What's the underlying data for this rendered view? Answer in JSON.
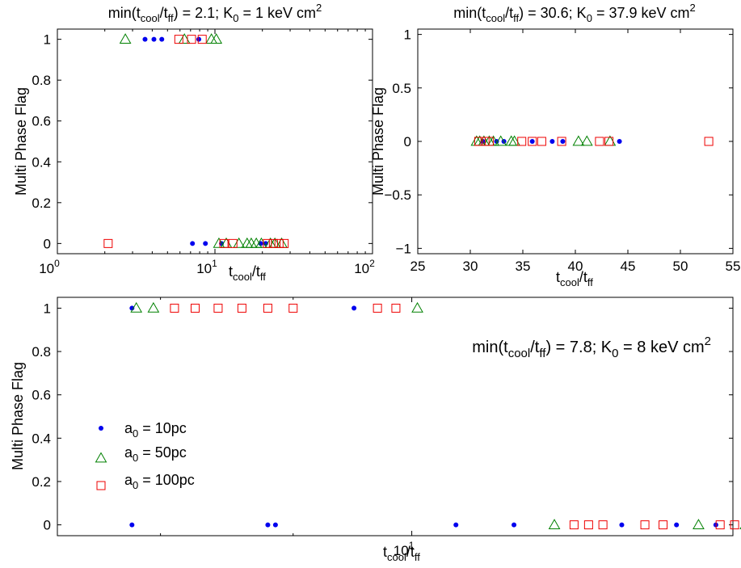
{
  "colors": {
    "a0_10pc": "#0000ee",
    "a0_50pc": "#008000",
    "a0_100pc": "#ee0000",
    "axes": "#000000",
    "background": "#ffffff"
  },
  "marker_shapes": {
    "a0_10pc": "dot",
    "a0_50pc": "triangle",
    "a0_100pc": "square"
  },
  "chart_data": [
    {
      "id": "top-left",
      "type": "scatter",
      "title": {
        "pre": "min(t",
        "s1": "cool",
        "mid": "/t",
        "s2": "ff",
        "post": ") = 2.1; K",
        "s3": "0",
        "post2": " = 1 keV cm",
        "sup": "2"
      },
      "xlabel": {
        "a": "t",
        "s1": "cool",
        "b": "/t",
        "s2": "ff"
      },
      "ylabel": "Multi Phase Flag",
      "xscale": "log",
      "xlim": [
        1,
        100
      ],
      "ylim": [
        -0.05,
        1.05
      ],
      "xticks": [
        {
          "base": "10",
          "exp": "0"
        },
        {
          "base": "10",
          "exp": "1"
        },
        {
          "base": "10",
          "exp": "2"
        }
      ],
      "yticks": [
        "0",
        "0.2",
        "0.4",
        "0.6",
        "0.8",
        "1"
      ],
      "yticks_values": [
        0,
        0.2,
        0.4,
        0.6,
        0.8,
        1
      ],
      "grid": false,
      "series": [
        {
          "key": "a0_10pc",
          "points": [
            [
              3.6,
              1
            ],
            [
              4.1,
              1
            ],
            [
              4.6,
              1
            ],
            [
              7.9,
              1
            ],
            [
              7.2,
              0
            ],
            [
              8.7,
              0
            ],
            [
              11.0,
              0
            ],
            [
              19.5,
              0
            ],
            [
              21.0,
              0
            ]
          ]
        },
        {
          "key": "a0_50pc",
          "points": [
            [
              2.7,
              1
            ],
            [
              6.4,
              1
            ],
            [
              9.5,
              1
            ],
            [
              10.2,
              1
            ],
            [
              10.6,
              0
            ],
            [
              11.8,
              0
            ],
            [
              14.2,
              0
            ],
            [
              16.0,
              0
            ],
            [
              17.0,
              0
            ],
            [
              18.3,
              0
            ],
            [
              19.7,
              0
            ],
            [
              22.5,
              0
            ],
            [
              24.0,
              0
            ],
            [
              26.5,
              0
            ]
          ]
        },
        {
          "key": "a0_100pc",
          "points": [
            [
              2.1,
              0
            ],
            [
              5.9,
              1
            ],
            [
              7.1,
              1
            ],
            [
              8.3,
              1
            ],
            [
              11.4,
              0
            ],
            [
              13.0,
              0
            ],
            [
              21.5,
              0
            ],
            [
              23.5,
              0
            ],
            [
              25.5,
              0
            ],
            [
              27.5,
              0
            ]
          ]
        }
      ]
    },
    {
      "id": "top-right",
      "type": "scatter",
      "title": {
        "pre": "min(t",
        "s1": "cool",
        "mid": "/t",
        "s2": "ff",
        "post": ") = 30.6; K",
        "s3": "0",
        "post2": " = 37.9 keV cm",
        "sup": "2"
      },
      "xlabel": {
        "a": "t",
        "s1": "cool",
        "b": "/t",
        "s2": "ff"
      },
      "ylabel": "Multi Phase Flag",
      "xscale": "linear",
      "xlim": [
        25,
        55
      ],
      "ylim": [
        -1.05,
        1.05
      ],
      "xticks": [
        "25",
        "30",
        "35",
        "40",
        "45",
        "50",
        "55"
      ],
      "xticks_values": [
        25,
        30,
        35,
        40,
        45,
        50,
        55
      ],
      "yticks": [
        "−1",
        "−0.5",
        "0",
        "0.5",
        "1"
      ],
      "yticks_values": [
        -1,
        -0.5,
        0,
        0.5,
        1
      ],
      "grid": false,
      "series": [
        {
          "key": "a0_10pc",
          "points": [
            [
              31.2,
              0
            ],
            [
              32.5,
              0
            ],
            [
              33.2,
              0
            ],
            [
              35.9,
              0
            ],
            [
              37.8,
              0
            ],
            [
              38.8,
              0
            ],
            [
              44.2,
              0
            ]
          ]
        },
        {
          "key": "a0_50pc",
          "points": [
            [
              30.6,
              0
            ],
            [
              30.9,
              0
            ],
            [
              31.3,
              0
            ],
            [
              31.8,
              0
            ],
            [
              32.2,
              0
            ],
            [
              32.9,
              0
            ],
            [
              33.9,
              0
            ],
            [
              34.2,
              0
            ],
            [
              40.3,
              0
            ],
            [
              41.1,
              0
            ],
            [
              43.3,
              0
            ]
          ]
        },
        {
          "key": "a0_100pc",
          "points": [
            [
              30.8,
              0
            ],
            [
              31.4,
              0
            ],
            [
              31.8,
              0
            ],
            [
              34.9,
              0
            ],
            [
              35.9,
              0
            ],
            [
              36.8,
              0
            ],
            [
              38.7,
              0
            ],
            [
              42.3,
              0
            ],
            [
              43.2,
              0
            ],
            [
              52.7,
              0
            ]
          ]
        }
      ]
    },
    {
      "id": "bottom",
      "type": "scatter",
      "title": {
        "pre": "min(t",
        "s1": "cool",
        "mid": "/t",
        "s2": "ff",
        "post": ") = 7.8; K",
        "s3": "0",
        "post2": " = 8 keV cm",
        "sup": "2"
      },
      "xlabel": {
        "a": "t",
        "s1": "cool",
        "b": "/t",
        "s2": "ff"
      },
      "ylabel": "Multi Phase Flag",
      "xscale": "log",
      "xlim": [
        7.3,
        13.3
      ],
      "ylim": [
        -0.05,
        1.05
      ],
      "xticks": [
        {
          "base": "10",
          "exp": "1"
        }
      ],
      "yticks": [
        "0",
        "0.2",
        "0.4",
        "0.6",
        "0.8",
        "1"
      ],
      "yticks_values": [
        0,
        0.2,
        0.4,
        0.6,
        0.8,
        1
      ],
      "grid": false,
      "legend": {
        "placement": "lower-left",
        "entries": [
          {
            "key": "a0_10pc",
            "a": "a",
            "sub": "0",
            "rest": " = 10pc"
          },
          {
            "key": "a0_50pc",
            "a": "a",
            "sub": "0",
            "rest": " = 50pc"
          },
          {
            "key": "a0_100pc",
            "a": "a",
            "sub": "0",
            "rest": " = 100pc"
          }
        ]
      },
      "series": [
        {
          "key": "a0_10pc",
          "points": [
            [
              7.8,
              1
            ],
            [
              9.5,
              1
            ],
            [
              7.8,
              0
            ],
            [
              8.8,
              0
            ],
            [
              8.86,
              0
            ],
            [
              10.4,
              0
            ],
            [
              10.95,
              0
            ],
            [
              12.05,
              0
            ],
            [
              12.65,
              0
            ],
            [
              13.1,
              0
            ]
          ]
        },
        {
          "key": "a0_50pc",
          "points": [
            [
              7.83,
              1
            ],
            [
              7.95,
              1
            ],
            [
              10.05,
              1
            ],
            [
              11.35,
              0
            ],
            [
              12.9,
              0
            ],
            [
              13.45,
              0
            ],
            [
              13.62,
              0
            ]
          ]
        },
        {
          "key": "a0_100pc",
          "points": [
            [
              8.1,
              1
            ],
            [
              8.25,
              1
            ],
            [
              8.42,
              1
            ],
            [
              8.6,
              1
            ],
            [
              8.8,
              1
            ],
            [
              9.0,
              1
            ],
            [
              9.7,
              1
            ],
            [
              9.86,
              1
            ],
            [
              11.55,
              0
            ],
            [
              11.7,
              0
            ],
            [
              11.85,
              0
            ],
            [
              12.3,
              0
            ],
            [
              12.5,
              0
            ],
            [
              13.15,
              0
            ],
            [
              13.32,
              0
            ],
            [
              13.5,
              0
            ],
            [
              13.7,
              0
            ]
          ]
        }
      ]
    }
  ]
}
